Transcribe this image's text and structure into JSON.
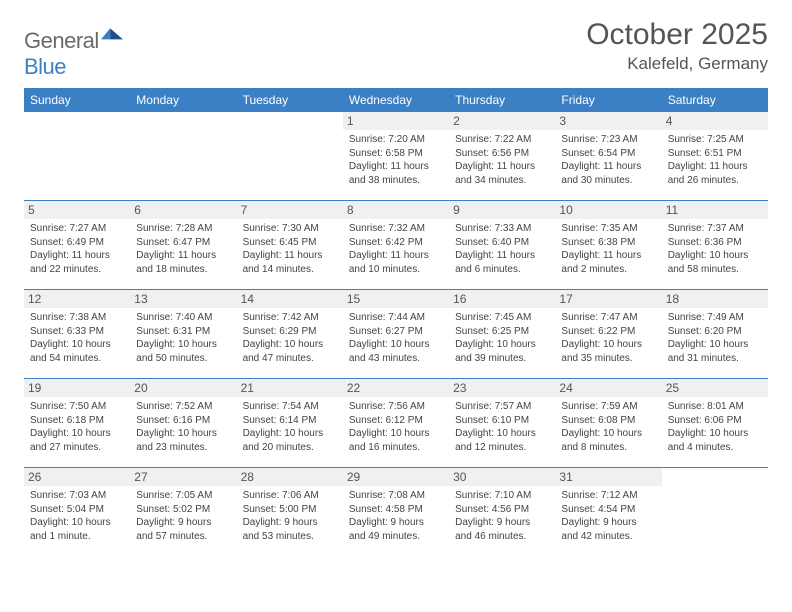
{
  "logo": {
    "text1": "General",
    "text2": "Blue"
  },
  "title": "October 2025",
  "subtitle": "Kalefeld, Germany",
  "colors": {
    "header_bg": "#3b7fc4",
    "header_text": "#ffffff",
    "daynum_bg": "#eef0f2",
    "rule": "#3b7fc4",
    "text": "#444444",
    "title": "#555555"
  },
  "weekdays": [
    "Sunday",
    "Monday",
    "Tuesday",
    "Wednesday",
    "Thursday",
    "Friday",
    "Saturday"
  ],
  "weeks": [
    [
      {
        "n": "",
        "sr": "",
        "ss": "",
        "dl": ""
      },
      {
        "n": "",
        "sr": "",
        "ss": "",
        "dl": ""
      },
      {
        "n": "",
        "sr": "",
        "ss": "",
        "dl": ""
      },
      {
        "n": "1",
        "sr": "Sunrise: 7:20 AM",
        "ss": "Sunset: 6:58 PM",
        "dl": "Daylight: 11 hours and 38 minutes."
      },
      {
        "n": "2",
        "sr": "Sunrise: 7:22 AM",
        "ss": "Sunset: 6:56 PM",
        "dl": "Daylight: 11 hours and 34 minutes."
      },
      {
        "n": "3",
        "sr": "Sunrise: 7:23 AM",
        "ss": "Sunset: 6:54 PM",
        "dl": "Daylight: 11 hours and 30 minutes."
      },
      {
        "n": "4",
        "sr": "Sunrise: 7:25 AM",
        "ss": "Sunset: 6:51 PM",
        "dl": "Daylight: 11 hours and 26 minutes."
      }
    ],
    [
      {
        "n": "5",
        "sr": "Sunrise: 7:27 AM",
        "ss": "Sunset: 6:49 PM",
        "dl": "Daylight: 11 hours and 22 minutes."
      },
      {
        "n": "6",
        "sr": "Sunrise: 7:28 AM",
        "ss": "Sunset: 6:47 PM",
        "dl": "Daylight: 11 hours and 18 minutes."
      },
      {
        "n": "7",
        "sr": "Sunrise: 7:30 AM",
        "ss": "Sunset: 6:45 PM",
        "dl": "Daylight: 11 hours and 14 minutes."
      },
      {
        "n": "8",
        "sr": "Sunrise: 7:32 AM",
        "ss": "Sunset: 6:42 PM",
        "dl": "Daylight: 11 hours and 10 minutes."
      },
      {
        "n": "9",
        "sr": "Sunrise: 7:33 AM",
        "ss": "Sunset: 6:40 PM",
        "dl": "Daylight: 11 hours and 6 minutes."
      },
      {
        "n": "10",
        "sr": "Sunrise: 7:35 AM",
        "ss": "Sunset: 6:38 PM",
        "dl": "Daylight: 11 hours and 2 minutes."
      },
      {
        "n": "11",
        "sr": "Sunrise: 7:37 AM",
        "ss": "Sunset: 6:36 PM",
        "dl": "Daylight: 10 hours and 58 minutes."
      }
    ],
    [
      {
        "n": "12",
        "sr": "Sunrise: 7:38 AM",
        "ss": "Sunset: 6:33 PM",
        "dl": "Daylight: 10 hours and 54 minutes."
      },
      {
        "n": "13",
        "sr": "Sunrise: 7:40 AM",
        "ss": "Sunset: 6:31 PM",
        "dl": "Daylight: 10 hours and 50 minutes."
      },
      {
        "n": "14",
        "sr": "Sunrise: 7:42 AM",
        "ss": "Sunset: 6:29 PM",
        "dl": "Daylight: 10 hours and 47 minutes."
      },
      {
        "n": "15",
        "sr": "Sunrise: 7:44 AM",
        "ss": "Sunset: 6:27 PM",
        "dl": "Daylight: 10 hours and 43 minutes."
      },
      {
        "n": "16",
        "sr": "Sunrise: 7:45 AM",
        "ss": "Sunset: 6:25 PM",
        "dl": "Daylight: 10 hours and 39 minutes."
      },
      {
        "n": "17",
        "sr": "Sunrise: 7:47 AM",
        "ss": "Sunset: 6:22 PM",
        "dl": "Daylight: 10 hours and 35 minutes."
      },
      {
        "n": "18",
        "sr": "Sunrise: 7:49 AM",
        "ss": "Sunset: 6:20 PM",
        "dl": "Daylight: 10 hours and 31 minutes."
      }
    ],
    [
      {
        "n": "19",
        "sr": "Sunrise: 7:50 AM",
        "ss": "Sunset: 6:18 PM",
        "dl": "Daylight: 10 hours and 27 minutes."
      },
      {
        "n": "20",
        "sr": "Sunrise: 7:52 AM",
        "ss": "Sunset: 6:16 PM",
        "dl": "Daylight: 10 hours and 23 minutes."
      },
      {
        "n": "21",
        "sr": "Sunrise: 7:54 AM",
        "ss": "Sunset: 6:14 PM",
        "dl": "Daylight: 10 hours and 20 minutes."
      },
      {
        "n": "22",
        "sr": "Sunrise: 7:56 AM",
        "ss": "Sunset: 6:12 PM",
        "dl": "Daylight: 10 hours and 16 minutes."
      },
      {
        "n": "23",
        "sr": "Sunrise: 7:57 AM",
        "ss": "Sunset: 6:10 PM",
        "dl": "Daylight: 10 hours and 12 minutes."
      },
      {
        "n": "24",
        "sr": "Sunrise: 7:59 AM",
        "ss": "Sunset: 6:08 PM",
        "dl": "Daylight: 10 hours and 8 minutes."
      },
      {
        "n": "25",
        "sr": "Sunrise: 8:01 AM",
        "ss": "Sunset: 6:06 PM",
        "dl": "Daylight: 10 hours and 4 minutes."
      }
    ],
    [
      {
        "n": "26",
        "sr": "Sunrise: 7:03 AM",
        "ss": "Sunset: 5:04 PM",
        "dl": "Daylight: 10 hours and 1 minute."
      },
      {
        "n": "27",
        "sr": "Sunrise: 7:05 AM",
        "ss": "Sunset: 5:02 PM",
        "dl": "Daylight: 9 hours and 57 minutes."
      },
      {
        "n": "28",
        "sr": "Sunrise: 7:06 AM",
        "ss": "Sunset: 5:00 PM",
        "dl": "Daylight: 9 hours and 53 minutes."
      },
      {
        "n": "29",
        "sr": "Sunrise: 7:08 AM",
        "ss": "Sunset: 4:58 PM",
        "dl": "Daylight: 9 hours and 49 minutes."
      },
      {
        "n": "30",
        "sr": "Sunrise: 7:10 AM",
        "ss": "Sunset: 4:56 PM",
        "dl": "Daylight: 9 hours and 46 minutes."
      },
      {
        "n": "31",
        "sr": "Sunrise: 7:12 AM",
        "ss": "Sunset: 4:54 PM",
        "dl": "Daylight: 9 hours and 42 minutes."
      },
      {
        "n": "",
        "sr": "",
        "ss": "",
        "dl": ""
      }
    ]
  ]
}
